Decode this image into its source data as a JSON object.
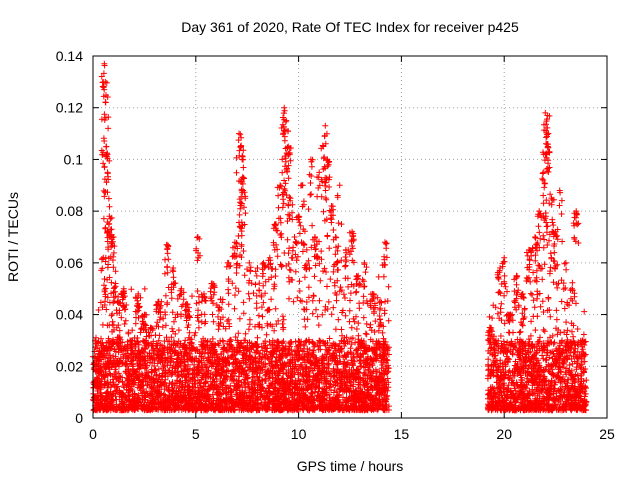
{
  "chart_data": {
    "type": "scatter",
    "title": "Day 361 of 2020, Rate Of TEC Index for receiver p425",
    "xlabel": "GPS time / hours",
    "ylabel": "ROTI / TECUs",
    "xlim": [
      0,
      25
    ],
    "ylim": [
      0,
      0.14
    ],
    "x_ticks": [
      0,
      5,
      10,
      15,
      20,
      25
    ],
    "x_tick_labels": [
      "0",
      "5",
      "10",
      "15",
      "20",
      "25"
    ],
    "y_ticks": [
      0,
      0.02,
      0.04,
      0.06,
      0.08,
      0.1,
      0.12,
      0.14
    ],
    "y_tick_labels": [
      "0",
      "0.02",
      "0.04",
      "0.06",
      "0.08",
      "0.1",
      "0.12",
      "0.14"
    ],
    "grid": true,
    "marker": "plus",
    "color": "#ff0000",
    "series": [
      {
        "points": [
          [
            0.2,
            0.012
          ],
          [
            0.3,
            0.018
          ],
          [
            0.4,
            0.025
          ],
          [
            0.5,
            0.062
          ],
          [
            0.55,
            0.137
          ],
          [
            0.6,
            0.13
          ],
          [
            0.62,
            0.122
          ],
          [
            0.65,
            0.105
          ],
          [
            0.7,
            0.102
          ],
          [
            0.8,
            0.078
          ],
          [
            0.9,
            0.073
          ],
          [
            1.0,
            0.07
          ],
          [
            1.1,
            0.052
          ],
          [
            1.2,
            0.045
          ],
          [
            1.5,
            0.05
          ],
          [
            1.8,
            0.03
          ],
          [
            2.2,
            0.048
          ],
          [
            2.5,
            0.04
          ],
          [
            2.8,
            0.035
          ],
          [
            3.2,
            0.045
          ],
          [
            3.6,
            0.067
          ],
          [
            3.9,
            0.058
          ],
          [
            4.3,
            0.05
          ],
          [
            4.6,
            0.044
          ],
          [
            5.1,
            0.07
          ],
          [
            5.4,
            0.048
          ],
          [
            5.8,
            0.052
          ],
          [
            6.2,
            0.046
          ],
          [
            6.6,
            0.06
          ],
          [
            6.9,
            0.068
          ],
          [
            7.1,
            0.11
          ],
          [
            7.2,
            0.105
          ],
          [
            7.25,
            0.1
          ],
          [
            7.3,
            0.088
          ],
          [
            7.6,
            0.06
          ],
          [
            8.0,
            0.058
          ],
          [
            8.3,
            0.06
          ],
          [
            8.6,
            0.062
          ],
          [
            8.9,
            0.075
          ],
          [
            9.1,
            0.09
          ],
          [
            9.2,
            0.1
          ],
          [
            9.3,
            0.12
          ],
          [
            9.4,
            0.115
          ],
          [
            9.5,
            0.105
          ],
          [
            9.6,
            0.085
          ],
          [
            9.8,
            0.07
          ],
          [
            10.0,
            0.078
          ],
          [
            10.2,
            0.09
          ],
          [
            10.4,
            0.065
          ],
          [
            10.6,
            0.1
          ],
          [
            10.8,
            0.07
          ],
          [
            11.0,
            0.095
          ],
          [
            11.2,
            0.105
          ],
          [
            11.3,
            0.113
          ],
          [
            11.4,
            0.1
          ],
          [
            11.6,
            0.082
          ],
          [
            11.8,
            0.07
          ],
          [
            12.0,
            0.09
          ],
          [
            12.3,
            0.065
          ],
          [
            12.6,
            0.072
          ],
          [
            12.9,
            0.055
          ],
          [
            13.2,
            0.06
          ],
          [
            13.6,
            0.048
          ],
          [
            14.0,
            0.045
          ],
          [
            14.2,
            0.068
          ],
          [
            19.3,
            0.035
          ],
          [
            19.6,
            0.03
          ],
          [
            19.8,
            0.058
          ],
          [
            20.0,
            0.062
          ],
          [
            20.3,
            0.04
          ],
          [
            20.6,
            0.055
          ],
          [
            20.9,
            0.048
          ],
          [
            21.2,
            0.065
          ],
          [
            21.5,
            0.07
          ],
          [
            21.7,
            0.08
          ],
          [
            21.9,
            0.095
          ],
          [
            22.0,
            0.118
          ],
          [
            22.1,
            0.117
          ],
          [
            22.15,
            0.11
          ],
          [
            22.3,
            0.085
          ],
          [
            22.5,
            0.072
          ],
          [
            22.7,
            0.088
          ],
          [
            23.0,
            0.06
          ],
          [
            23.3,
            0.05
          ],
          [
            23.5,
            0.08
          ],
          [
            23.8,
            0.03
          ]
        ],
        "noise": {
          "segments": [
            [
              0,
              14.4
            ],
            [
              19.2,
              24.0
            ]
          ],
          "base_min": 0.003,
          "base_max": 0.03,
          "count": 5200
        }
      }
    ]
  }
}
